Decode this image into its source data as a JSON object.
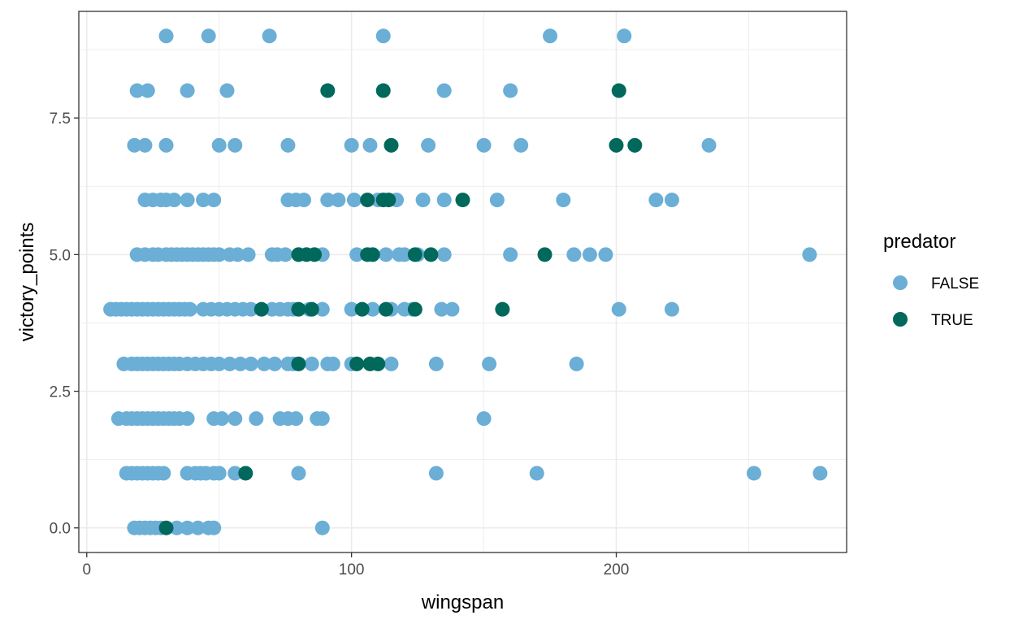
{
  "chart_data": {
    "type": "scatter",
    "title": "",
    "xlabel": "wingspan",
    "ylabel": "victory_points",
    "xlim": [
      -3,
      287
    ],
    "ylim": [
      -0.45,
      9.45
    ],
    "x_ticks": [
      0,
      100,
      200
    ],
    "x_tick_labels": [
      "0",
      "100",
      "200"
    ],
    "y_ticks": [
      0,
      2.5,
      5,
      7.5
    ],
    "y_tick_labels": [
      "0.0",
      "2.5",
      "5.0",
      "7.5"
    ],
    "grid": true,
    "legend": {
      "title": "predator",
      "position": "right"
    },
    "colors": {
      "FALSE": "#6baed6",
      "TRUE": "#00695c",
      "grid": "#ebebeb",
      "panel_border": "#333333"
    },
    "series": [
      {
        "name": "FALSE",
        "points": [
          [
            30,
            9
          ],
          [
            46,
            9
          ],
          [
            69,
            9
          ],
          [
            112,
            9
          ],
          [
            175,
            9
          ],
          [
            203,
            9
          ],
          [
            19,
            8
          ],
          [
            23,
            8
          ],
          [
            38,
            8
          ],
          [
            53,
            8
          ],
          [
            135,
            8
          ],
          [
            160,
            8
          ],
          [
            18,
            7
          ],
          [
            22,
            7
          ],
          [
            30,
            7
          ],
          [
            50,
            7
          ],
          [
            56,
            7
          ],
          [
            76,
            7
          ],
          [
            100,
            7
          ],
          [
            107,
            7
          ],
          [
            129,
            7
          ],
          [
            150,
            7
          ],
          [
            164,
            7
          ],
          [
            235,
            7
          ],
          [
            22,
            6
          ],
          [
            25,
            6
          ],
          [
            28,
            6
          ],
          [
            30,
            6
          ],
          [
            33,
            6
          ],
          [
            38,
            6
          ],
          [
            44,
            6
          ],
          [
            48,
            6
          ],
          [
            76,
            6
          ],
          [
            79,
            6
          ],
          [
            82,
            6
          ],
          [
            91,
            6
          ],
          [
            95,
            6
          ],
          [
            101,
            6
          ],
          [
            110,
            6
          ],
          [
            117,
            6
          ],
          [
            127,
            6
          ],
          [
            135,
            6
          ],
          [
            155,
            6
          ],
          [
            180,
            6
          ],
          [
            215,
            6
          ],
          [
            221,
            6
          ],
          [
            19,
            5
          ],
          [
            22,
            5
          ],
          [
            25,
            5
          ],
          [
            27,
            5
          ],
          [
            30,
            5
          ],
          [
            32,
            5
          ],
          [
            34,
            5
          ],
          [
            36,
            5
          ],
          [
            38,
            5
          ],
          [
            40,
            5
          ],
          [
            42,
            5
          ],
          [
            44,
            5
          ],
          [
            46,
            5
          ],
          [
            48,
            5
          ],
          [
            50,
            5
          ],
          [
            54,
            5
          ],
          [
            57,
            5
          ],
          [
            61,
            5
          ],
          [
            70,
            5
          ],
          [
            72,
            5
          ],
          [
            75,
            5
          ],
          [
            80,
            5
          ],
          [
            89,
            5
          ],
          [
            102,
            5
          ],
          [
            113,
            5
          ],
          [
            118,
            5
          ],
          [
            120,
            5
          ],
          [
            125,
            5
          ],
          [
            135,
            5
          ],
          [
            160,
            5
          ],
          [
            184,
            5
          ],
          [
            190,
            5
          ],
          [
            196,
            5
          ],
          [
            273,
            5
          ],
          [
            9,
            4
          ],
          [
            11,
            4
          ],
          [
            13,
            4
          ],
          [
            15,
            4
          ],
          [
            17,
            4
          ],
          [
            19,
            4
          ],
          [
            21,
            4
          ],
          [
            23,
            4
          ],
          [
            25,
            4
          ],
          [
            27,
            4
          ],
          [
            29,
            4
          ],
          [
            31,
            4
          ],
          [
            33,
            4
          ],
          [
            35,
            4
          ],
          [
            37,
            4
          ],
          [
            39,
            4
          ],
          [
            44,
            4
          ],
          [
            47,
            4
          ],
          [
            50,
            4
          ],
          [
            53,
            4
          ],
          [
            56,
            4
          ],
          [
            59,
            4
          ],
          [
            62,
            4
          ],
          [
            70,
            4
          ],
          [
            73,
            4
          ],
          [
            76,
            4
          ],
          [
            78,
            4
          ],
          [
            84,
            4
          ],
          [
            89,
            4
          ],
          [
            100,
            4
          ],
          [
            108,
            4
          ],
          [
            115,
            4
          ],
          [
            120,
            4
          ],
          [
            123,
            4
          ],
          [
            134,
            4
          ],
          [
            138,
            4
          ],
          [
            201,
            4
          ],
          [
            221,
            4
          ],
          [
            14,
            3
          ],
          [
            17,
            3
          ],
          [
            19,
            3
          ],
          [
            21,
            3
          ],
          [
            23,
            3
          ],
          [
            25,
            3
          ],
          [
            27,
            3
          ],
          [
            29,
            3
          ],
          [
            31,
            3
          ],
          [
            33,
            3
          ],
          [
            35,
            3
          ],
          [
            38,
            3
          ],
          [
            41,
            3
          ],
          [
            44,
            3
          ],
          [
            47,
            3
          ],
          [
            50,
            3
          ],
          [
            54,
            3
          ],
          [
            58,
            3
          ],
          [
            62,
            3
          ],
          [
            67,
            3
          ],
          [
            71,
            3
          ],
          [
            76,
            3
          ],
          [
            78,
            3
          ],
          [
            85,
            3
          ],
          [
            91,
            3
          ],
          [
            93,
            3
          ],
          [
            100,
            3
          ],
          [
            115,
            3
          ],
          [
            132,
            3
          ],
          [
            152,
            3
          ],
          [
            185,
            3
          ],
          [
            12,
            2
          ],
          [
            15,
            2
          ],
          [
            17,
            2
          ],
          [
            19,
            2
          ],
          [
            21,
            2
          ],
          [
            23,
            2
          ],
          [
            25,
            2
          ],
          [
            27,
            2
          ],
          [
            29,
            2
          ],
          [
            31,
            2
          ],
          [
            33,
            2
          ],
          [
            35,
            2
          ],
          [
            38,
            2
          ],
          [
            48,
            2
          ],
          [
            51,
            2
          ],
          [
            56,
            2
          ],
          [
            64,
            2
          ],
          [
            73,
            2
          ],
          [
            76,
            2
          ],
          [
            79,
            2
          ],
          [
            87,
            2
          ],
          [
            89,
            2
          ],
          [
            150,
            2
          ],
          [
            15,
            1
          ],
          [
            17,
            1
          ],
          [
            19,
            1
          ],
          [
            21,
            1
          ],
          [
            23,
            1
          ],
          [
            25,
            1
          ],
          [
            27,
            1
          ],
          [
            29,
            1
          ],
          [
            38,
            1
          ],
          [
            41,
            1
          ],
          [
            43,
            1
          ],
          [
            45,
            1
          ],
          [
            48,
            1
          ],
          [
            50,
            1
          ],
          [
            56,
            1
          ],
          [
            80,
            1
          ],
          [
            132,
            1
          ],
          [
            170,
            1
          ],
          [
            252,
            1
          ],
          [
            277,
            1
          ],
          [
            18,
            0
          ],
          [
            20,
            0
          ],
          [
            22,
            0
          ],
          [
            24,
            0
          ],
          [
            26,
            0
          ],
          [
            28,
            0
          ],
          [
            34,
            0
          ],
          [
            38,
            0
          ],
          [
            42,
            0
          ],
          [
            46,
            0
          ],
          [
            48,
            0
          ],
          [
            89,
            0
          ]
        ]
      },
      {
        "name": "TRUE",
        "points": [
          [
            91,
            8
          ],
          [
            112,
            8
          ],
          [
            201,
            8
          ],
          [
            115,
            7
          ],
          [
            200,
            7
          ],
          [
            207,
            7
          ],
          [
            106,
            6
          ],
          [
            112,
            6
          ],
          [
            114,
            6
          ],
          [
            142,
            6
          ],
          [
            80,
            5
          ],
          [
            83,
            5
          ],
          [
            86,
            5
          ],
          [
            106,
            5
          ],
          [
            108,
            5
          ],
          [
            124,
            5
          ],
          [
            130,
            5
          ],
          [
            173,
            5
          ],
          [
            66,
            4
          ],
          [
            80,
            4
          ],
          [
            85,
            4
          ],
          [
            104,
            4
          ],
          [
            113,
            4
          ],
          [
            124,
            4
          ],
          [
            157,
            4
          ],
          [
            80,
            3
          ],
          [
            102,
            3
          ],
          [
            107,
            3
          ],
          [
            110,
            3
          ],
          [
            60,
            1
          ],
          [
            30,
            0
          ]
        ]
      }
    ]
  }
}
